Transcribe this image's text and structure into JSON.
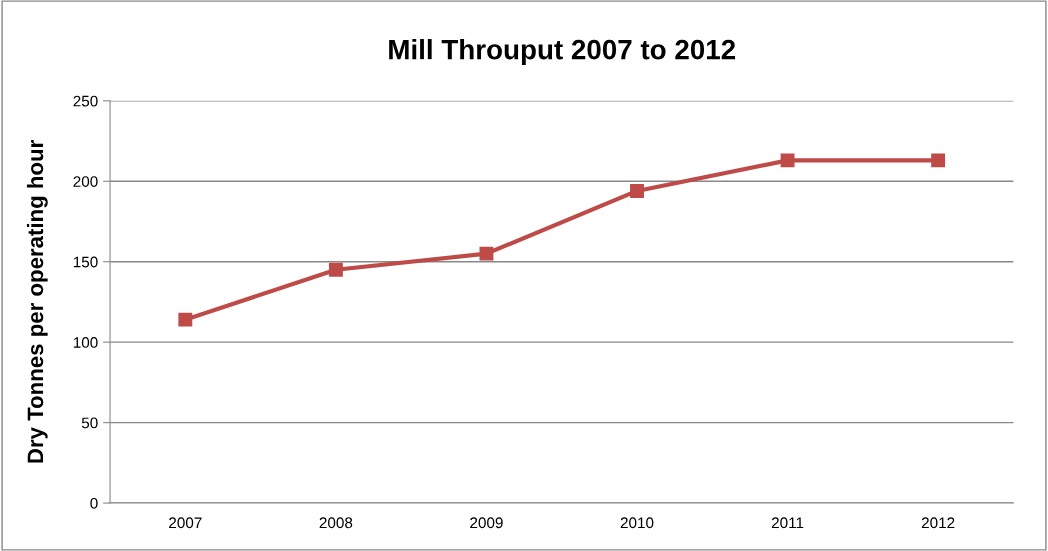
{
  "chart_data": {
    "type": "line",
    "title": "Mill Throuput 2007 to 2012",
    "ylabel": "Dry Tonnes per operating hour",
    "categories": [
      "2007",
      "2008",
      "2009",
      "2010",
      "2011",
      "2012"
    ],
    "series": [
      {
        "color": "#be4b48",
        "values": [
          114,
          145,
          155,
          194,
          213,
          213
        ]
      }
    ],
    "ylim": [
      0,
      250
    ],
    "yticks": [
      0,
      50,
      100,
      150,
      200,
      250
    ],
    "grid": "y",
    "legend": false,
    "marker": "square",
    "line_style": "solid"
  }
}
